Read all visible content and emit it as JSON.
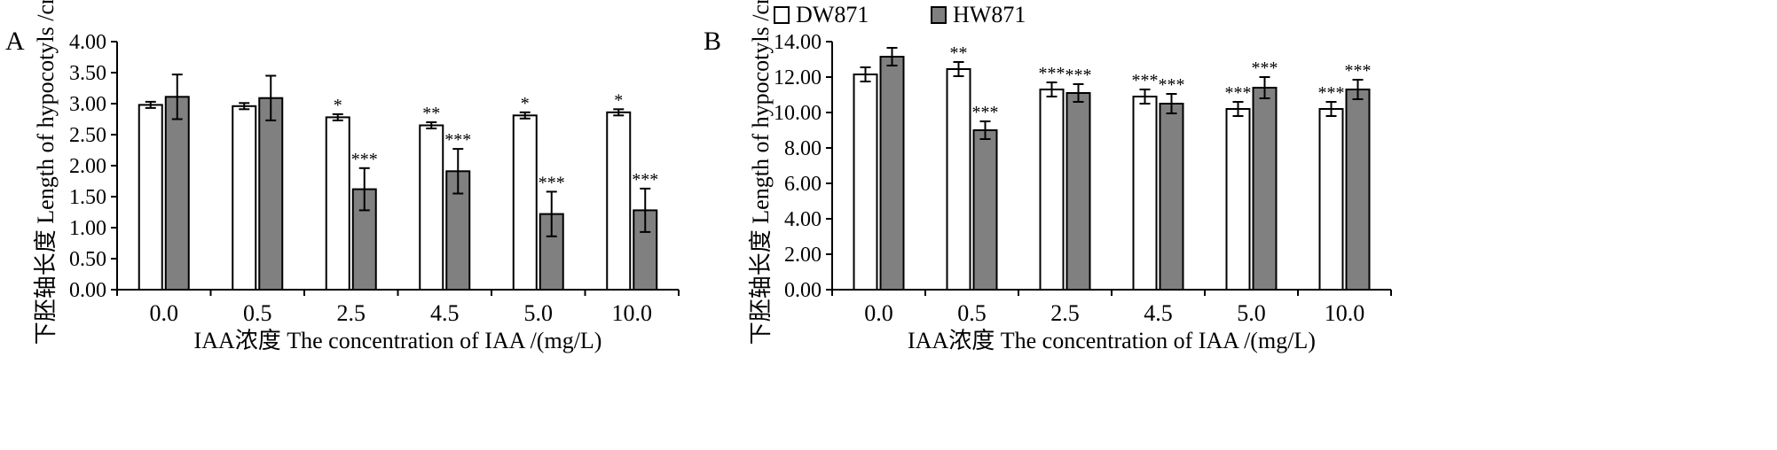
{
  "legend": {
    "placement": "top-center",
    "items": [
      {
        "label": "DW871",
        "color": "#ffffff"
      },
      {
        "label": "HW871",
        "color": "#808080"
      }
    ]
  },
  "chart_data": [
    {
      "type": "bar",
      "panel_label": "A",
      "ylabel": "下胚轴长度 Length of hypocotyls /cm",
      "xlabel": "IAA浓度 The concentration of IAA /(mg/L)",
      "categories": [
        "0.0",
        "0.5",
        "2.5",
        "4.5",
        "5.0",
        "10.0"
      ],
      "ylim": [
        0,
        4
      ],
      "ytick_step": 0.5,
      "ytick_decimals": 2,
      "grid": false,
      "series": [
        {
          "name": "DW871",
          "color": "#ffffff",
          "values": [
            2.98,
            2.96,
            2.78,
            2.65,
            2.81,
            2.86
          ],
          "errors": [
            0.05,
            0.05,
            0.05,
            0.05,
            0.05,
            0.05
          ],
          "significance": [
            "",
            "",
            "*",
            "**",
            "*",
            "*"
          ]
        },
        {
          "name": "HW871",
          "color": "#808080",
          "values": [
            3.11,
            3.09,
            1.62,
            1.91,
            1.22,
            1.28
          ],
          "errors": [
            0.36,
            0.36,
            0.34,
            0.36,
            0.36,
            0.35
          ],
          "significance": [
            "",
            "",
            "***",
            "***",
            "***",
            "***"
          ]
        }
      ]
    },
    {
      "type": "bar",
      "panel_label": "B",
      "ylabel": "下胚轴长度 Length of hypocotyls /cm",
      "xlabel": "IAA浓度 The concentration of IAA /(mg/L)",
      "categories": [
        "0.0",
        "0.5",
        "2.5",
        "4.5",
        "5.0",
        "10.0"
      ],
      "ylim": [
        0,
        14
      ],
      "ytick_step": 2,
      "ytick_decimals": 2,
      "grid": false,
      "series": [
        {
          "name": "DW871",
          "color": "#ffffff",
          "values": [
            12.15,
            12.45,
            11.3,
            10.9,
            10.2,
            10.2
          ],
          "errors": [
            0.4,
            0.4,
            0.4,
            0.4,
            0.4,
            0.4
          ],
          "significance": [
            "",
            "**",
            "***",
            "***",
            "***",
            "***"
          ]
        },
        {
          "name": "HW871",
          "color": "#808080",
          "values": [
            13.15,
            9.0,
            11.1,
            10.5,
            11.4,
            11.3
          ],
          "errors": [
            0.5,
            0.5,
            0.5,
            0.55,
            0.6,
            0.55
          ],
          "significance": [
            "",
            "***",
            "***",
            "***",
            "***",
            "***"
          ]
        }
      ]
    }
  ]
}
